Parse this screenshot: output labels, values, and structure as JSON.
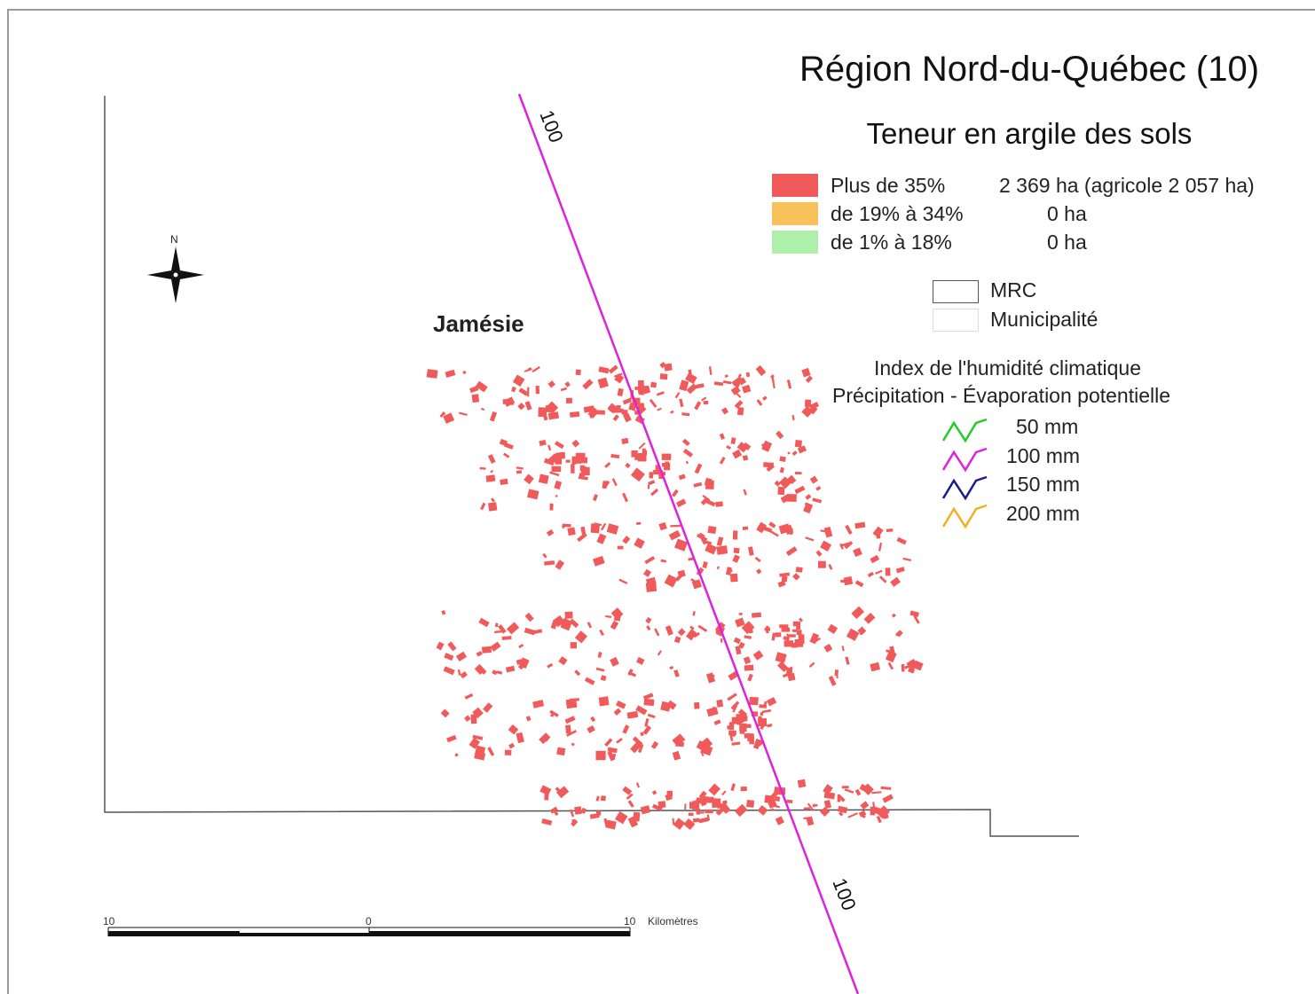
{
  "title": "Région Nord-du-Québec (10)",
  "subtitle": "Teneur en argile des sols",
  "clay_legend": [
    {
      "label": "Plus de 35%",
      "area": "2 369 ha (agricole 2 057 ha)",
      "color": "#f05a5a"
    },
    {
      "label": "de 19% à 34%",
      "area": "0 ha",
      "color": "#f7c25a"
    },
    {
      "label": "de 1% à 18%",
      "area": "0 ha",
      "color": "#aef0aa"
    }
  ],
  "boundary_legend": [
    {
      "label": "MRC"
    },
    {
      "label": "Municipalité"
    }
  ],
  "humidity_index": {
    "title_line1": "Index de l'humidité climatique",
    "title_line2": "Précipitation - Évaporation potentielle",
    "items": [
      {
        "label": "50 mm",
        "color": "#22cc22"
      },
      {
        "label": "100 mm",
        "color": "#dd22dd"
      },
      {
        "label": "150 mm",
        "color": "#1a1a8c"
      },
      {
        "label": "200 mm",
        "color": "#f0b020"
      }
    ]
  },
  "north_arrow_label": "N",
  "region_label": "Jamésie",
  "contour_labels": [
    "100",
    "100"
  ],
  "scale_bar": {
    "ticks": [
      "10",
      "0",
      "10"
    ],
    "unit": "Kilomètres"
  }
}
